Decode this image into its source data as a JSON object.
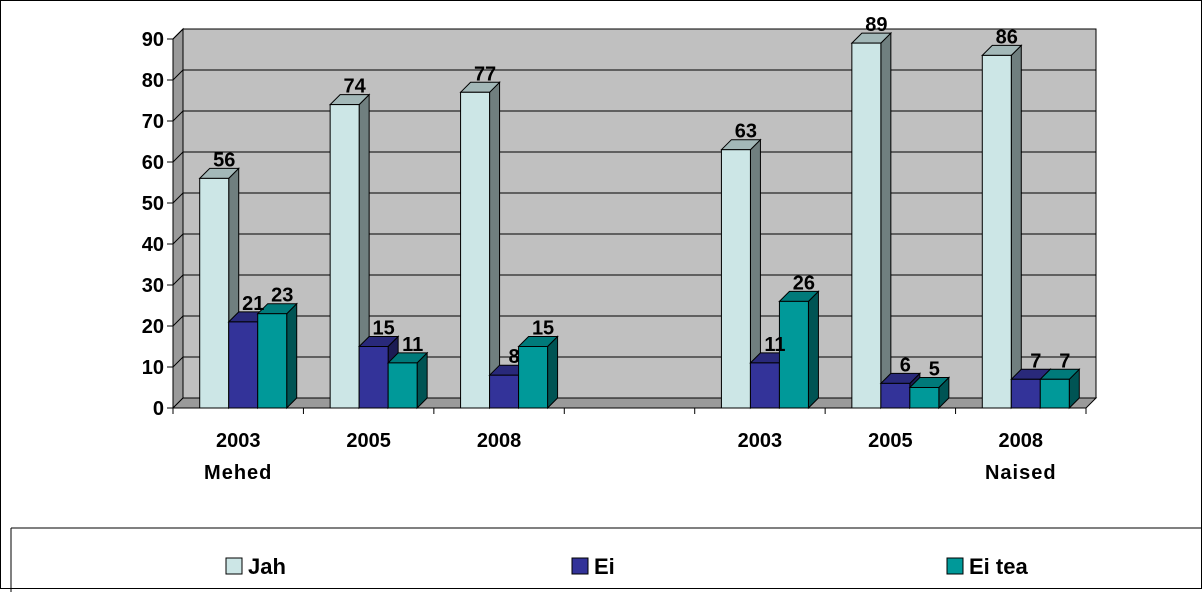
{
  "chart_data": {
    "type": "bar",
    "style": "3d-clustered-column",
    "groups": [
      {
        "name": "Mehed",
        "categories": [
          "2003",
          "2005",
          "2008"
        ]
      },
      {
        "name": "",
        "categories": []
      },
      {
        "name": "Naised",
        "categories": [
          "2003",
          "2005",
          "2008"
        ]
      }
    ],
    "categories": [
      "2003",
      "2005",
      "2008",
      "",
      "2003",
      "2005",
      "2008"
    ],
    "series": [
      {
        "name": "Jah",
        "color": "#cce6e6",
        "values": [
          56,
          74,
          77,
          null,
          63,
          89,
          86
        ]
      },
      {
        "name": "Ei",
        "color": "#333399",
        "values": [
          21,
          15,
          8,
          null,
          11,
          6,
          7
        ]
      },
      {
        "name": "Ei tea",
        "color": "#009999",
        "values": [
          23,
          11,
          15,
          null,
          26,
          5,
          7
        ]
      }
    ],
    "ylim": [
      0,
      90
    ],
    "yticks": [
      0,
      10,
      20,
      30,
      40,
      50,
      60,
      70,
      80,
      90
    ],
    "grid": true,
    "plot_background": "#c0c0c0",
    "legend_position": "bottom",
    "title": "",
    "xlabel": "",
    "ylabel": ""
  }
}
